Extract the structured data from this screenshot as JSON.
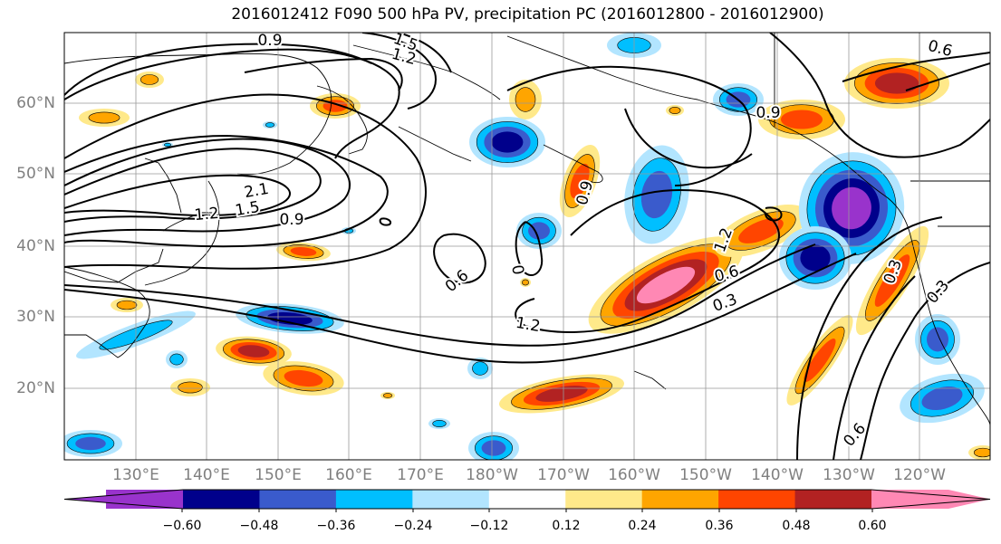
{
  "title": "2016012412 F090 500 hPa PV, precipitation PC (2016012800 - 2016012900)",
  "map": {
    "region": "North Pacific",
    "lat_labels": [
      "60°N",
      "50°N",
      "40°N",
      "30°N",
      "20°N"
    ],
    "lon_labels": [
      "130°E",
      "140°E",
      "150°E",
      "160°E",
      "170°E",
      "180°W",
      "170°W",
      "160°W",
      "150°W",
      "140°W",
      "130°W",
      "120°W"
    ],
    "contour_labels": [
      "0.9",
      "1.5",
      "1.2",
      "0.6",
      "0.9",
      "2.1",
      "1.5",
      "1.2",
      "0.9",
      "0.9",
      "0.6",
      "0",
      "1.2",
      "1.2",
      "0.6",
      "0.3",
      "0.3",
      "0.3",
      "0.6"
    ],
    "colors": {
      "neg_060": "#9933cc",
      "neg_048": "#00008b",
      "neg_036": "#3a5bcc",
      "neg_024": "#00bfff",
      "neg_012": "#b2e5ff",
      "zero": "#ffffff",
      "pos_012": "#ffe98a",
      "pos_024": "#ffa500",
      "pos_036": "#ff4500",
      "pos_048": "#b22222",
      "pos_060": "#ff88b4"
    }
  },
  "colorbar": {
    "ticks": [
      "−0.60",
      "−0.48",
      "−0.36",
      "−0.24",
      "−0.12",
      "0.12",
      "0.24",
      "0.36",
      "0.48",
      "0.60"
    ],
    "segment_colors": [
      "#9933cc",
      "#00008b",
      "#3a5bcc",
      "#00bfff",
      "#b2e5ff",
      "#ffffff",
      "#ffe98a",
      "#ffa500",
      "#ff4500",
      "#b22222",
      "#ff88b4"
    ]
  }
}
